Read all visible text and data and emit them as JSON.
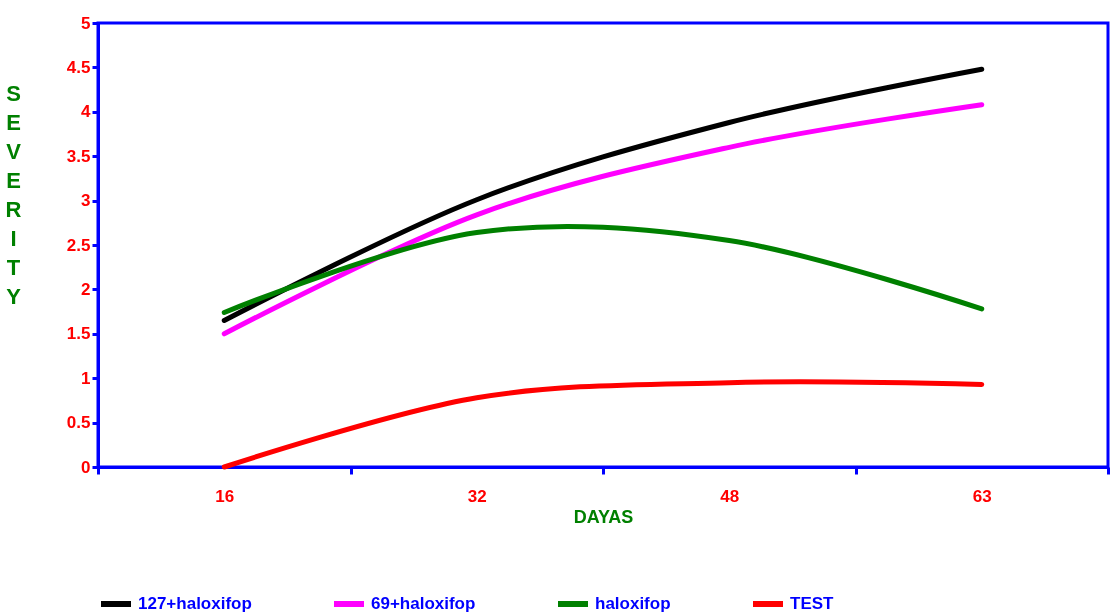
{
  "chart_data": {
    "type": "line",
    "xlabel": "DAYAS",
    "ylabel": "SEVERITY",
    "categories": [
      "16",
      "32",
      "48",
      "63"
    ],
    "series": [
      {
        "name": "127+haloxifop",
        "color": "#000000",
        "values": [
          1.65,
          3.01,
          3.88,
          4.48
        ]
      },
      {
        "name": "69+haloxifop",
        "color": "#ff00ff",
        "values": [
          1.5,
          2.84,
          3.6,
          4.08
        ]
      },
      {
        "name": "haloxifop",
        "color": "#008000",
        "values": [
          1.74,
          2.64,
          2.55,
          1.78
        ]
      },
      {
        "name": "TEST",
        "color": "#ff0000",
        "values": [
          0.0,
          0.78,
          0.95,
          0.93
        ]
      }
    ],
    "ylim": [
      0,
      5
    ],
    "yticks": [
      0,
      0.5,
      1,
      1.5,
      2,
      2.5,
      3,
      3.5,
      4,
      4.5,
      5
    ],
    "grid": false,
    "legend": "bottom",
    "marker": "none",
    "line_style": "solid"
  }
}
